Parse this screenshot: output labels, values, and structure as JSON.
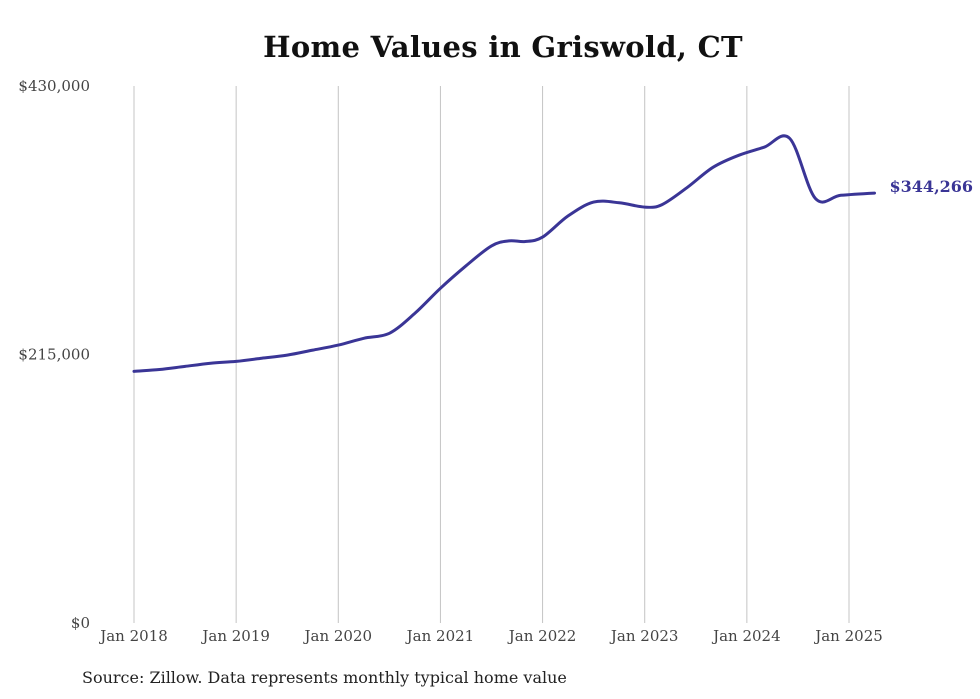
{
  "chart_data": {
    "type": "line",
    "title": "Home Values in Griswold, CT",
    "xlabel": "",
    "ylabel": "",
    "source_note": "Source: Zillow. Data represents monthly typical home value",
    "ylim": [
      0,
      430000
    ],
    "y_ticks": [
      {
        "value": 0,
        "label": "$0"
      },
      {
        "value": 215000,
        "label": "$215,000"
      },
      {
        "value": 430000,
        "label": "$430,000"
      }
    ],
    "x_ticks": [
      {
        "value": 2018,
        "label": "Jan 2018"
      },
      {
        "value": 2019,
        "label": "Jan 2019"
      },
      {
        "value": 2020,
        "label": "Jan 2020"
      },
      {
        "value": 2021,
        "label": "Jan 2021"
      },
      {
        "value": 2022,
        "label": "Jan 2022"
      },
      {
        "value": 2023,
        "label": "Jan 2023"
      },
      {
        "value": 2024,
        "label": "Jan 2024"
      },
      {
        "value": 2025,
        "label": "Jan 2025"
      }
    ],
    "xlim": [
      2018,
      2025.25
    ],
    "grid": {
      "vertical": true,
      "horizontal": false
    },
    "line_color": "#3a3596",
    "end_label": "$344,266",
    "series": [
      {
        "name": "",
        "x": [
          2018.0,
          2018.25,
          2018.5,
          2018.75,
          2019.0,
          2019.25,
          2019.5,
          2019.75,
          2020.0,
          2020.25,
          2020.5,
          2020.75,
          2021.0,
          2021.25,
          2021.5,
          2021.67,
          2021.83,
          2022.0,
          2022.25,
          2022.5,
          2022.75,
          2023.0,
          2023.17,
          2023.42,
          2023.67,
          2023.92,
          2024.17,
          2024.42,
          2024.67,
          2024.92,
          2025.25
        ],
        "values": [
          201500,
          203000,
          205500,
          208000,
          209500,
          212000,
          214500,
          218500,
          222500,
          228000,
          232000,
          248000,
          268000,
          286000,
          302000,
          306000,
          305500,
          309000,
          326000,
          337000,
          336500,
          333000,
          335000,
          349000,
          365000,
          374500,
          381000,
          388000,
          340000,
          342500,
          344266
        ]
      }
    ]
  }
}
